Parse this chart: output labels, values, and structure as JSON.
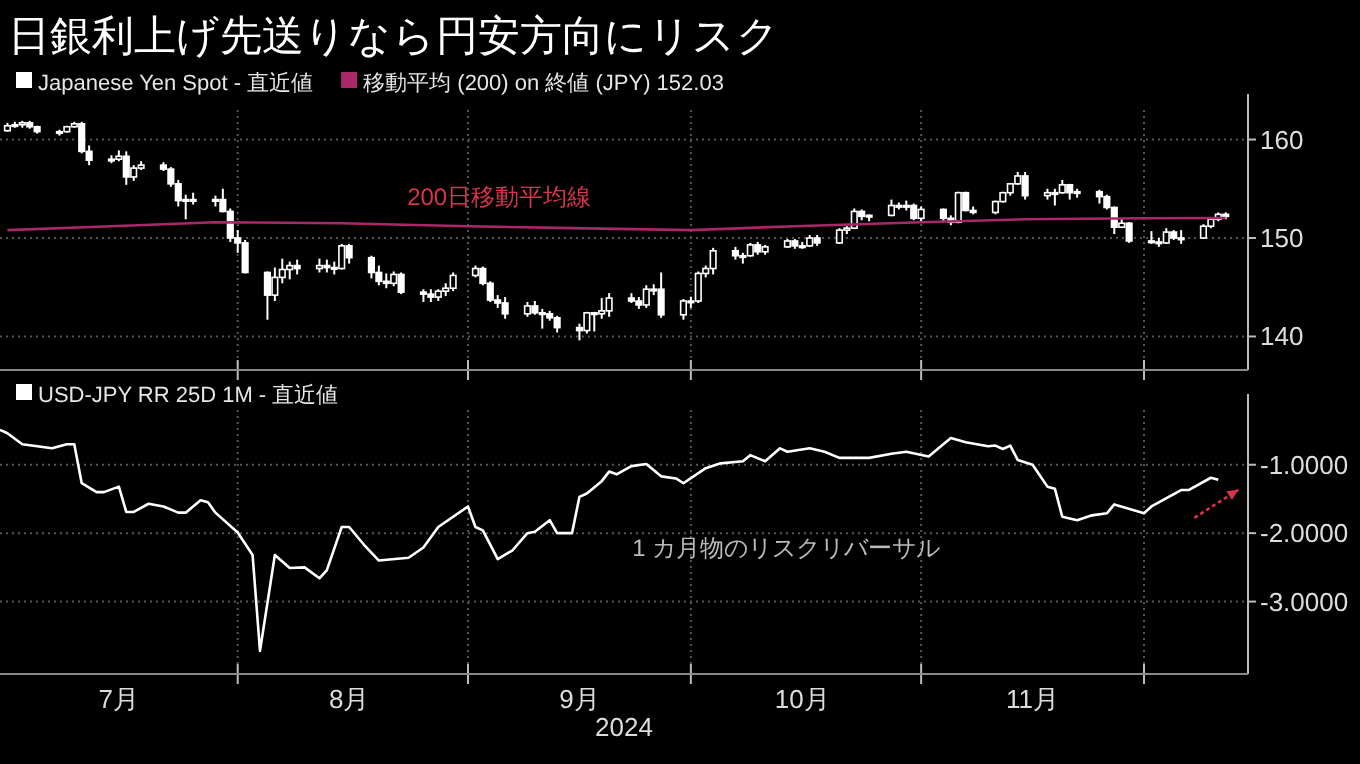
{
  "chart_data": [
    {
      "type": "candlestick",
      "title": "日銀利上げ先送りなら円安方向にリスク",
      "legend": "top left",
      "grid": true,
      "tick_labels": "y",
      "xlim": [
        "2024-06-30",
        "2024-12-15"
      ],
      "xticks": [
        {
          "value": "2024-08-01",
          "label": null
        },
        {
          "value": "2024-09-01",
          "label": null
        },
        {
          "value": "2024-10-01",
          "label": null
        },
        {
          "value": "2024-11-01",
          "label": null
        },
        {
          "value": "2024-12-01",
          "label": null
        }
      ],
      "ylim": [
        137,
        163
      ],
      "yticks": [
        140,
        150,
        160
      ],
      "annotations": [
        "200日移動平均線"
      ],
      "series": [
        {
          "type": "candlestick",
          "name": "Japanese Yen Spot - 直近値",
          "color": "#ffffff",
          "x": [
            "2024-07-01",
            "2024-07-02",
            "2024-07-03",
            "2024-07-04",
            "2024-07-05",
            "2024-07-08",
            "2024-07-09",
            "2024-07-10",
            "2024-07-11",
            "2024-07-12",
            "2024-07-15",
            "2024-07-16",
            "2024-07-17",
            "2024-07-18",
            "2024-07-19",
            "2024-07-22",
            "2024-07-23",
            "2024-07-24",
            "2024-07-25",
            "2024-07-26",
            "2024-07-29",
            "2024-07-30",
            "2024-07-31",
            "2024-08-01",
            "2024-08-02",
            "2024-08-05",
            "2024-08-06",
            "2024-08-07",
            "2024-08-08",
            "2024-08-09",
            "2024-08-12",
            "2024-08-13",
            "2024-08-14",
            "2024-08-15",
            "2024-08-16",
            "2024-08-19",
            "2024-08-20",
            "2024-08-21",
            "2024-08-22",
            "2024-08-23",
            "2024-08-26",
            "2024-08-27",
            "2024-08-28",
            "2024-08-29",
            "2024-08-30",
            "2024-09-02",
            "2024-09-03",
            "2024-09-04",
            "2024-09-05",
            "2024-09-06",
            "2024-09-09",
            "2024-09-10",
            "2024-09-11",
            "2024-09-12",
            "2024-09-13",
            "2024-09-16",
            "2024-09-17",
            "2024-09-18",
            "2024-09-19",
            "2024-09-20",
            "2024-09-23",
            "2024-09-24",
            "2024-09-25",
            "2024-09-26",
            "2024-09-27",
            "2024-09-30",
            "2024-10-01",
            "2024-10-02",
            "2024-10-03",
            "2024-10-04",
            "2024-10-07",
            "2024-10-08",
            "2024-10-09",
            "2024-10-10",
            "2024-10-11",
            "2024-10-14",
            "2024-10-15",
            "2024-10-16",
            "2024-10-17",
            "2024-10-18",
            "2024-10-21",
            "2024-10-22",
            "2024-10-23",
            "2024-10-24",
            "2024-10-25",
            "2024-10-28",
            "2024-10-29",
            "2024-10-30",
            "2024-10-31",
            "2024-11-01",
            "2024-11-04",
            "2024-11-05",
            "2024-11-06",
            "2024-11-07",
            "2024-11-08",
            "2024-11-11",
            "2024-11-12",
            "2024-11-13",
            "2024-11-14",
            "2024-11-15",
            "2024-11-18",
            "2024-11-19",
            "2024-11-20",
            "2024-11-21",
            "2024-11-22",
            "2024-11-25",
            "2024-11-26",
            "2024-11-27",
            "2024-11-28",
            "2024-11-29",
            "2024-12-02",
            "2024-12-03",
            "2024-12-04",
            "2024-12-05",
            "2024-12-06",
            "2024-12-09",
            "2024-12-10",
            "2024-12-11",
            "2024-12-12"
          ],
          "ohlc": [
            [
              160.9,
              161.7,
              160.8,
              161.4
            ],
            [
              161.4,
              161.8,
              161.2,
              161.5
            ],
            [
              161.5,
              161.9,
              161.2,
              161.7
            ],
            [
              161.7,
              161.9,
              161.1,
              161.3
            ],
            [
              161.3,
              161.4,
              160.6,
              160.8
            ],
            [
              160.8,
              161.0,
              160.4,
              160.8
            ],
            [
              160.8,
              161.4,
              160.7,
              161.3
            ],
            [
              161.3,
              161.8,
              161.2,
              161.6
            ],
            [
              161.6,
              161.8,
              158.6,
              158.8
            ],
            [
              158.8,
              159.4,
              157.4,
              157.9
            ],
            [
              157.9,
              158.4,
              157.6,
              158.0
            ],
            [
              158.0,
              158.9,
              157.8,
              158.3
            ],
            [
              158.3,
              158.8,
              155.4,
              156.2
            ],
            [
              156.2,
              157.4,
              155.8,
              157.1
            ],
            [
              157.1,
              157.8,
              156.9,
              157.4
            ],
            [
              157.4,
              157.7,
              156.8,
              157.0
            ],
            [
              157.0,
              157.2,
              155.2,
              155.5
            ],
            [
              155.5,
              155.9,
              153.2,
              153.8
            ],
            [
              153.8,
              154.4,
              151.9,
              153.9
            ],
            [
              153.9,
              154.6,
              153.4,
              153.8
            ],
            [
              153.8,
              154.3,
              153.2,
              153.9
            ],
            [
              153.9,
              155.0,
              152.6,
              152.7
            ],
            [
              152.7,
              153.0,
              149.6,
              150.0
            ],
            [
              150.0,
              150.8,
              148.5,
              149.5
            ],
            [
              149.5,
              149.8,
              146.4,
              146.5
            ],
            [
              146.5,
              146.6,
              141.7,
              144.2
            ],
            [
              144.2,
              147.0,
              143.6,
              146.0
            ],
            [
              146.0,
              147.9,
              145.4,
              146.8
            ],
            [
              146.8,
              147.6,
              145.8,
              147.2
            ],
            [
              147.2,
              147.8,
              146.3,
              146.9
            ],
            [
              146.9,
              147.9,
              146.5,
              147.2
            ],
            [
              147.2,
              147.8,
              146.5,
              147.0
            ],
            [
              147.0,
              147.6,
              146.3,
              146.9
            ],
            [
              146.9,
              149.4,
              146.8,
              149.2
            ],
            [
              149.2,
              149.4,
              147.4,
              148.0
            ],
            [
              148.0,
              148.2,
              145.9,
              146.5
            ],
            [
              146.5,
              147.2,
              145.2,
              145.6
            ],
            [
              145.6,
              146.4,
              144.9,
              145.4
            ],
            [
              145.4,
              146.6,
              145.1,
              146.3
            ],
            [
              146.3,
              146.5,
              144.3,
              144.5
            ],
            [
              144.5,
              144.8,
              143.5,
              144.3
            ],
            [
              144.3,
              144.8,
              143.5,
              144.0
            ],
            [
              144.0,
              144.8,
              143.6,
              144.6
            ],
            [
              144.6,
              145.4,
              144.1,
              144.9
            ],
            [
              144.9,
              146.5,
              144.6,
              146.2
            ],
            [
              146.2,
              147.2,
              146.0,
              146.9
            ],
            [
              146.9,
              147.1,
              145.2,
              145.4
            ],
            [
              145.4,
              145.6,
              143.5,
              143.7
            ],
            [
              143.7,
              144.2,
              142.9,
              143.4
            ],
            [
              143.4,
              144.0,
              141.8,
              142.3
            ],
            [
              142.3,
              143.5,
              142.0,
              143.1
            ],
            [
              143.1,
              143.6,
              142.2,
              142.4
            ],
            [
              142.4,
              142.8,
              140.8,
              142.3
            ],
            [
              142.3,
              142.6,
              141.6,
              141.9
            ],
            [
              141.9,
              142.1,
              140.4,
              140.9
            ],
            [
              140.9,
              141.3,
              139.6,
              140.6
            ],
            [
              140.6,
              142.5,
              140.3,
              142.4
            ],
            [
              142.4,
              142.5,
              140.5,
              142.3
            ],
            [
              142.3,
              143.9,
              141.8,
              142.6
            ],
            [
              142.6,
              144.4,
              142.0,
              143.9
            ],
            [
              143.9,
              144.4,
              143.4,
              143.6
            ],
            [
              143.6,
              144.0,
              142.8,
              143.2
            ],
            [
              143.2,
              145.2,
              142.9,
              144.8
            ],
            [
              144.8,
              145.3,
              144.2,
              144.8
            ],
            [
              144.8,
              146.5,
              141.9,
              142.2
            ],
            [
              142.2,
              143.8,
              141.7,
              143.6
            ],
            [
              143.6,
              144.0,
              142.9,
              143.6
            ],
            [
              143.6,
              146.6,
              143.4,
              146.4
            ],
            [
              146.4,
              147.2,
              146.0,
              146.9
            ],
            [
              146.9,
              149.0,
              146.3,
              148.7
            ],
            [
              148.7,
              149.1,
              147.8,
              148.2
            ],
            [
              148.2,
              148.5,
              147.4,
              148.2
            ],
            [
              148.2,
              149.5,
              148.1,
              149.3
            ],
            [
              149.3,
              149.6,
              148.3,
              148.6
            ],
            [
              148.6,
              149.3,
              148.3,
              149.1
            ],
            [
              149.1,
              149.9,
              149.0,
              149.7
            ],
            [
              149.7,
              149.9,
              148.9,
              149.2
            ],
            [
              149.2,
              149.6,
              148.9,
              149.2
            ],
            [
              149.2,
              150.3,
              149.1,
              150.0
            ],
            [
              150.0,
              150.3,
              149.2,
              149.5
            ],
            [
              149.5,
              151.0,
              149.4,
              150.8
            ],
            [
              150.8,
              151.2,
              150.4,
              151.0
            ],
            [
              151.0,
              153.0,
              150.9,
              152.7
            ],
            [
              152.7,
              152.9,
              151.8,
              152.2
            ],
            [
              152.2,
              152.4,
              151.7,
              152.3
            ],
            [
              152.3,
              153.9,
              152.2,
              153.3
            ],
            [
              153.3,
              153.6,
              152.9,
              153.2
            ],
            [
              153.2,
              153.8,
              152.8,
              153.3
            ],
            [
              153.3,
              153.5,
              151.8,
              152.0
            ],
            [
              152.0,
              153.2,
              151.7,
              152.9
            ],
            [
              152.9,
              153.0,
              151.7,
              152.0
            ],
            [
              152.0,
              152.3,
              151.3,
              151.6
            ],
            [
              151.6,
              154.7,
              151.5,
              154.6
            ],
            [
              154.6,
              154.7,
              152.7,
              152.8
            ],
            [
              152.8,
              153.2,
              152.4,
              152.6
            ],
            [
              152.6,
              153.8,
              152.4,
              153.7
            ],
            [
              153.7,
              154.7,
              153.6,
              154.6
            ],
            [
              154.6,
              155.6,
              154.3,
              155.5
            ],
            [
              155.5,
              156.7,
              155.4,
              156.3
            ],
            [
              156.3,
              156.7,
              153.9,
              154.3
            ],
            [
              154.3,
              155.0,
              153.9,
              154.6
            ],
            [
              154.6,
              155.0,
              153.3,
              154.6
            ],
            [
              154.6,
              155.9,
              154.5,
              155.4
            ],
            [
              155.4,
              155.5,
              153.9,
              154.6
            ],
            [
              154.6,
              155.0,
              154.1,
              154.7
            ],
            [
              154.7,
              154.9,
              153.5,
              154.2
            ],
            [
              154.2,
              154.4,
              152.9,
              153.1
            ],
            [
              153.1,
              153.2,
              150.4,
              151.1
            ],
            [
              151.1,
              151.9,
              151.0,
              151.5
            ],
            [
              151.5,
              151.6,
              149.5,
              149.7
            ],
            [
              149.7,
              150.7,
              149.4,
              149.6
            ],
            [
              149.6,
              150.0,
              149.1,
              149.5
            ],
            [
              149.5,
              151.0,
              149.4,
              150.6
            ],
            [
              150.6,
              150.8,
              149.8,
              150.0
            ],
            [
              150.0,
              150.8,
              149.4,
              150.0
            ],
            [
              150.0,
              151.4,
              149.9,
              151.2
            ],
            [
              151.2,
              152.0,
              151.0,
              151.9
            ],
            [
              151.9,
              152.6,
              151.7,
              152.4
            ],
            [
              152.4,
              152.6,
              151.9,
              152.2
            ]
          ]
        },
        {
          "type": "line",
          "name": "移動平均 (200) on 終値 (JPY) 152.03",
          "color": "#a8286a",
          "x": [
            "2024-07-01",
            "2024-07-15",
            "2024-07-29",
            "2024-08-15",
            "2024-09-01",
            "2024-09-15",
            "2024-10-01",
            "2024-10-15",
            "2024-11-01",
            "2024-11-15",
            "2024-12-01",
            "2024-12-12"
          ],
          "values": [
            150.8,
            151.2,
            151.6,
            151.5,
            151.2,
            151.0,
            150.8,
            151.2,
            151.6,
            151.9,
            152.0,
            152.03
          ]
        }
      ]
    },
    {
      "type": "line",
      "legend": "top left",
      "grid": true,
      "xlabel": "2024",
      "xlim": [
        "2024-06-30",
        "2024-12-15"
      ],
      "xticks": [
        {
          "value": "2024-07-16",
          "label": "7月"
        },
        {
          "value": "2024-08-01",
          "label": null
        },
        {
          "value": "2024-08-16",
          "label": "8月"
        },
        {
          "value": "2024-09-01",
          "label": null
        },
        {
          "value": "2024-09-16",
          "label": "9月"
        },
        {
          "value": "2024-10-01",
          "label": null
        },
        {
          "value": "2024-10-16",
          "label": "10月"
        },
        {
          "value": "2024-11-01",
          "label": null
        },
        {
          "value": "2024-11-16",
          "label": "11月"
        },
        {
          "value": "2024-12-01",
          "label": null
        }
      ],
      "ylim": [
        -4,
        -0.2
      ],
      "yticks": [
        {
          "value": -1,
          "label": "-1.0000"
        },
        {
          "value": -2,
          "label": "-2.0000"
        },
        {
          "value": -3,
          "label": "-3.0000"
        }
      ],
      "annotations": [
        "1 カ月物のリスクリバーサル"
      ],
      "series": [
        {
          "name": "USD-JPY RR 25D 1M - 直近値",
          "color": "#ffffff",
          "x": [
            "2024-06-30",
            "2024-07-01",
            "2024-07-03",
            "2024-07-07",
            "2024-07-09",
            "2024-07-10",
            "2024-07-11",
            "2024-07-13",
            "2024-07-14",
            "2024-07-16",
            "2024-07-17",
            "2024-07-18",
            "2024-07-20",
            "2024-07-22",
            "2024-07-24",
            "2024-07-25",
            "2024-07-27",
            "2024-07-28",
            "2024-07-29",
            "2024-08-01",
            "2024-08-03",
            "2024-08-04",
            "2024-08-06",
            "2024-08-08",
            "2024-08-10",
            "2024-08-12",
            "2024-08-13",
            "2024-08-15",
            "2024-08-16",
            "2024-08-18",
            "2024-08-20",
            "2024-08-24",
            "2024-08-26",
            "2024-08-28",
            "2024-09-01",
            "2024-09-02",
            "2024-09-03",
            "2024-09-05",
            "2024-09-07",
            "2024-09-09",
            "2024-09-10",
            "2024-09-12",
            "2024-09-13",
            "2024-09-15",
            "2024-09-16",
            "2024-09-17",
            "2024-09-19",
            "2024-09-20",
            "2024-09-21",
            "2024-09-23",
            "2024-09-25",
            "2024-09-27",
            "2024-09-29",
            "2024-09-30",
            "2024-10-03",
            "2024-10-05",
            "2024-10-08",
            "2024-10-09",
            "2024-10-11",
            "2024-10-13",
            "2024-10-14",
            "2024-10-17",
            "2024-10-19",
            "2024-10-21",
            "2024-10-25",
            "2024-10-28",
            "2024-10-30",
            "2024-11-02",
            "2024-11-05",
            "2024-11-07",
            "2024-11-10",
            "2024-11-11",
            "2024-11-12",
            "2024-11-13",
            "2024-11-14",
            "2024-11-16",
            "2024-11-18",
            "2024-11-19",
            "2024-11-20",
            "2024-11-22",
            "2024-11-24",
            "2024-11-26",
            "2024-11-27",
            "2024-12-01",
            "2024-12-02",
            "2024-12-06",
            "2024-12-07",
            "2024-12-10",
            "2024-12-11"
          ],
          "values": [
            -0.49,
            -0.54,
            -0.7,
            -0.76,
            -0.7,
            -0.7,
            -1.27,
            -1.4,
            -1.4,
            -1.32,
            -1.69,
            -1.69,
            -1.57,
            -1.61,
            -1.7,
            -1.7,
            -1.52,
            -1.55,
            -1.7,
            -1.99,
            -2.32,
            -3.72,
            -2.32,
            -2.51,
            -2.5,
            -2.66,
            -2.54,
            -1.91,
            -1.91,
            -2.17,
            -2.4,
            -2.36,
            -2.21,
            -1.91,
            -1.61,
            -1.91,
            -1.96,
            -2.38,
            -2.25,
            -2.0,
            -1.98,
            -1.81,
            -2.0,
            -2.0,
            -1.47,
            -1.42,
            -1.24,
            -1.1,
            -1.14,
            -1.02,
            -0.99,
            -1.17,
            -1.2,
            -1.27,
            -1.05,
            -0.98,
            -0.95,
            -0.86,
            -0.95,
            -0.76,
            -0.81,
            -0.76,
            -0.81,
            -0.9,
            -0.9,
            -0.84,
            -0.81,
            -0.88,
            -0.61,
            -0.67,
            -0.73,
            -0.72,
            -0.77,
            -0.72,
            -0.93,
            -1.0,
            -1.32,
            -1.35,
            -1.76,
            -1.81,
            -1.74,
            -1.71,
            -1.58,
            -1.71,
            -1.61,
            -1.37,
            -1.37,
            -1.19,
            -1.22
          ]
        }
      ]
    }
  ]
}
